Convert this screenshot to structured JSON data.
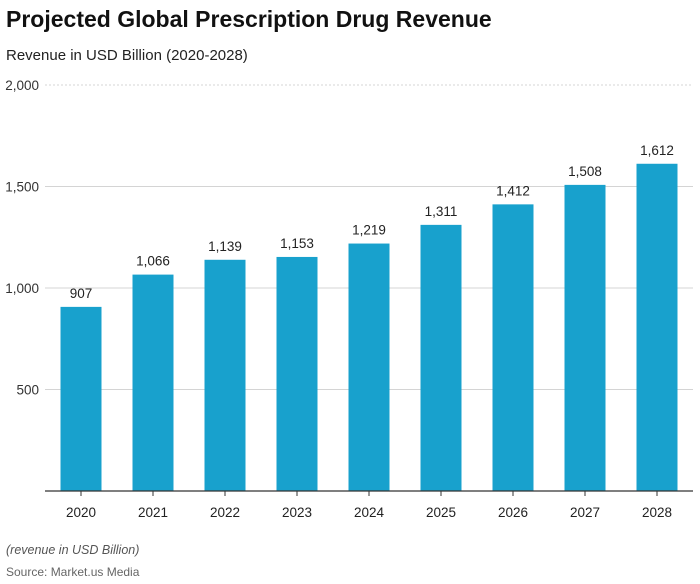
{
  "chart_data": {
    "type": "bar",
    "title": "Projected Global Prescription Drug Revenue",
    "subtitle": "Revenue in USD Billion (2020-2028)",
    "categories": [
      "2020",
      "2021",
      "2022",
      "2023",
      "2024",
      "2025",
      "2026",
      "2027",
      "2028"
    ],
    "values": [
      907,
      1066,
      1139,
      1153,
      1219,
      1311,
      1412,
      1508,
      1612
    ],
    "data_labels": [
      "907",
      "1,066",
      "1,139",
      "1,153",
      "1,219",
      "1,311",
      "1,412",
      "1,508",
      "1,612"
    ],
    "ylim": [
      0,
      2000
    ],
    "yticks": [
      500,
      1000,
      1500,
      2000
    ],
    "ytick_labels": [
      "500",
      "1,000",
      "1,500",
      "2,000"
    ],
    "grid": true,
    "bar_color": "#18a1cd",
    "note": "(revenue in USD Billion)",
    "source": "Source: Market.us Media"
  }
}
